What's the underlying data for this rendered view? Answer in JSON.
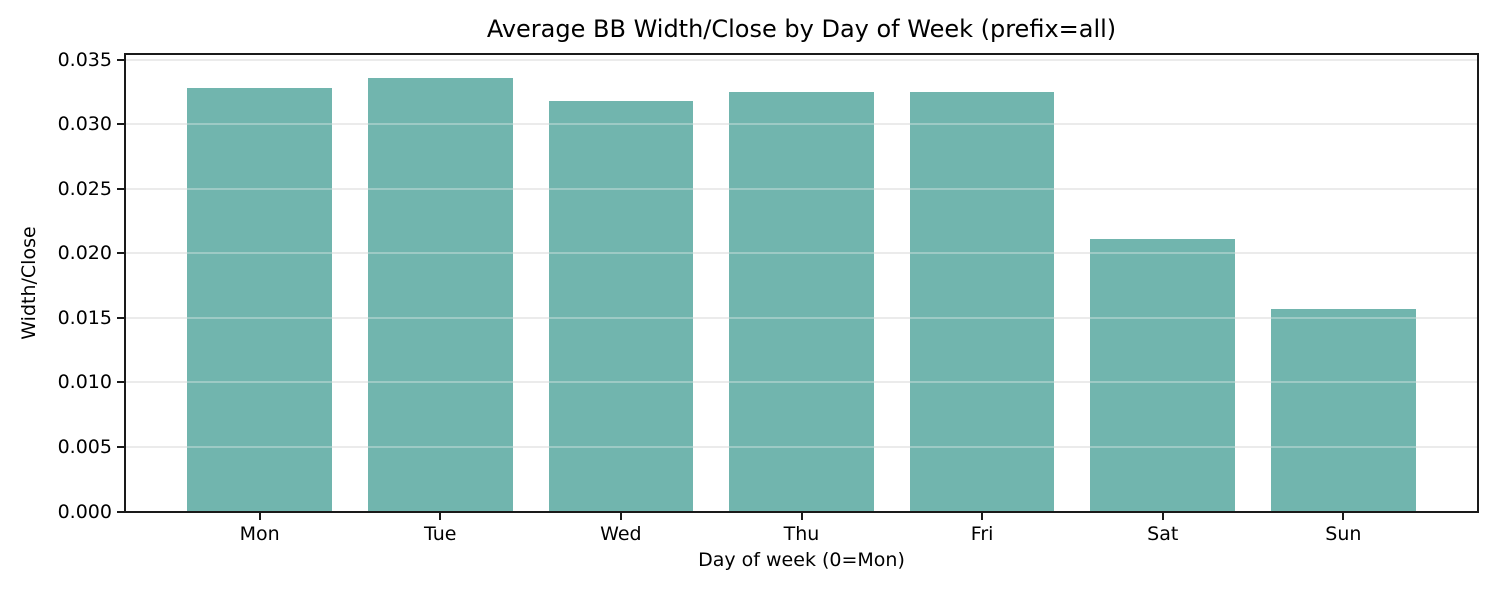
{
  "chart_data": {
    "type": "bar",
    "title": "Average BB Width/Close by Day of Week (prefix=all)",
    "xlabel": "Day of week (0=Mon)",
    "ylabel": "Width/Close",
    "categories": [
      "Mon",
      "Tue",
      "Wed",
      "Thu",
      "Fri",
      "Sat",
      "Sun"
    ],
    "values": [
      0.0328,
      0.0336,
      0.0318,
      0.0325,
      0.0325,
      0.0211,
      0.0157
    ],
    "ylim": [
      0,
      0.0354
    ],
    "yticks": [
      0,
      0.005,
      0.01,
      0.015,
      0.02,
      0.025,
      0.03,
      0.035
    ],
    "ytick_labels": [
      "0.000",
      "0.005",
      "0.010",
      "0.015",
      "0.020",
      "0.025",
      "0.030",
      "0.035"
    ],
    "bar_color": "#71b5ae",
    "grid": "horizontal",
    "grid_color": "#e8e8e8",
    "axis_color": "#1a1a1a",
    "background_color": "#ffffff",
    "legend": "none"
  }
}
